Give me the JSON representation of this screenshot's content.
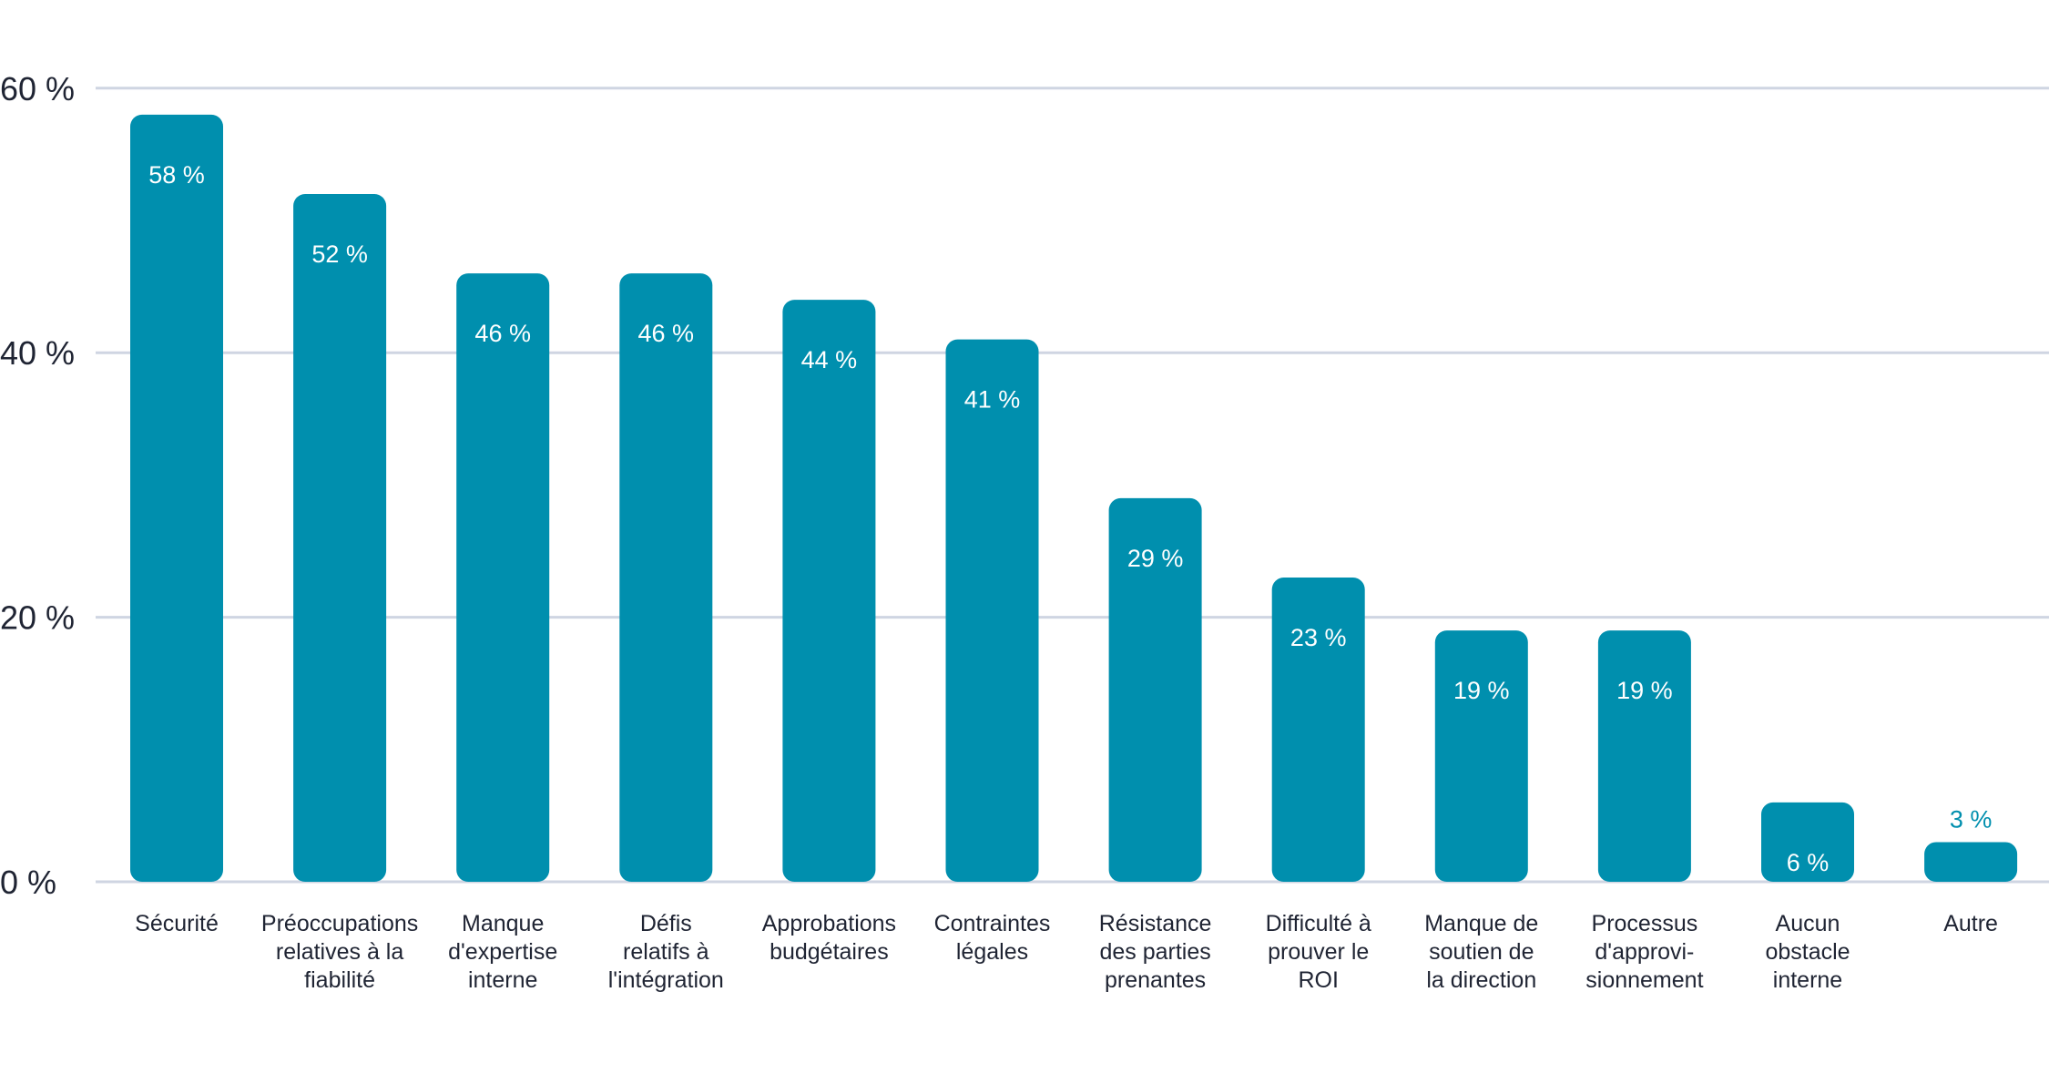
{
  "chart_data": {
    "type": "bar",
    "title": "",
    "xlabel": "",
    "ylabel": "",
    "ylim": [
      0,
      60
    ],
    "y_ticks": [
      0,
      20,
      40,
      60
    ],
    "y_tick_labels": [
      "0 %",
      "20 %",
      "40 %",
      "60 %"
    ],
    "grid": true,
    "bar_color": "#008FAE",
    "categories": [
      "Sécurité",
      "Préoccupations relatives à la fiabilité",
      "Manque d'expertise interne",
      "Défis relatifs à l'intégration",
      "Approbations budgétaires",
      "Contraintes légales",
      "Résistance des parties prenantes",
      "Difficulté à prouver le ROI",
      "Manque de soutien de la direction",
      "Processus d'approvi- sionnement",
      "Aucun obstacle interne",
      "Autre"
    ],
    "category_lines": [
      [
        "Sécurité"
      ],
      [
        "Préoccupations",
        "relatives à la",
        "fiabilité"
      ],
      [
        "Manque",
        "d'expertise",
        "interne"
      ],
      [
        "Défis",
        "relatifs à",
        "l'intégration"
      ],
      [
        "Approbations",
        "budgétaires"
      ],
      [
        "Contraintes",
        "légales"
      ],
      [
        "Résistance",
        "des parties",
        "prenantes"
      ],
      [
        "Difficulté à",
        "prouver le",
        "ROI"
      ],
      [
        "Manque de",
        "soutien de",
        "la direction"
      ],
      [
        "Processus",
        "d'approvi-",
        "sionnement"
      ],
      [
        "Aucun",
        "obstacle",
        "interne"
      ],
      [
        "Autre"
      ]
    ],
    "values": [
      58,
      52,
      46,
      46,
      44,
      41,
      29,
      23,
      19,
      19,
      6,
      3
    ],
    "value_labels": [
      "58 %",
      "52 %",
      "46 %",
      "46 %",
      "44 %",
      "41 %",
      "29 %",
      "23 %",
      "19 %",
      "19 %",
      "6 %",
      "3 %"
    ]
  }
}
